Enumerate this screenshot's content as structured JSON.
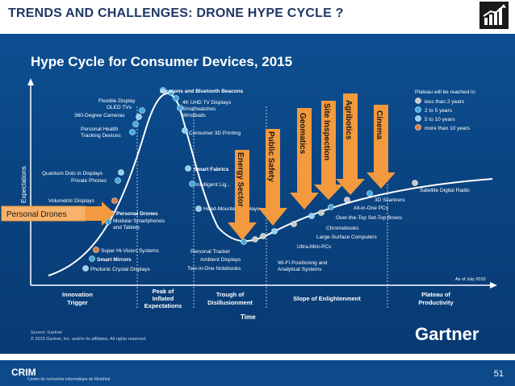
{
  "slide": {
    "title": "TRENDS AND CHALLENGES: DRONE HYPE CYCLE ?",
    "page_number": "51",
    "footer_logo": "CRIM",
    "footer_logo_sub": "Centre de recherche informatique de Montréal",
    "logo_icon": "rising-chart-icon"
  },
  "figure": {
    "title": "Hype Cycle for Consumer Devices, 2015",
    "y_axis_label": "Expectations",
    "x_axis_label": "Time",
    "as_of": "As of July 2015",
    "source_line1": "Source: Gartner",
    "source_line2": "© 2015 Gartner, Inc. and/or its affiliates. All rights reserved.",
    "brand": "Gartner",
    "phases": [
      "Innovation\nTrigger",
      "Peak of\nInflated\nExpectations",
      "Trough of\nDisillusionment",
      "Slope of Enlightenment",
      "Plateau of\nProductivity"
    ],
    "legend": {
      "title": "Plateau will be reached in:",
      "items": [
        {
          "label": "less than 2 years",
          "color": "#c9c9c9"
        },
        {
          "label": "2 to 5 years",
          "color": "#3fa9e0"
        },
        {
          "label": "5 to 10 years",
          "color": "#8fd0f0"
        },
        {
          "label": "more than 10 years",
          "color": "#e07b39"
        }
      ]
    },
    "technologies": [
      "Flexible Display",
      "OLED TVs",
      "360-Degree Cameras",
      "Personal Health\nTracking Devices",
      "iBeacons and Bluetooth Beacons",
      "4K UHD TV Displays",
      "Smartwatches",
      "Wristbads",
      "Consumer 3D Printing",
      "Smart Fabrics",
      "Intelligent Lig...",
      "Head-Mounted Displays",
      "Quantum Dots in Displays",
      "Private Phones",
      "Volumetric Displays",
      "Personal Drones",
      "Modular Smartphones\nand Tablets",
      "Super Hi-Vision Systems",
      "Smart Mirrors",
      "Photonic Crystal Displays",
      "Personal Tracker",
      "Ambient Displays",
      "Two-in-One Notebooks",
      "Wi-Fi Positioning and\nAnalytical Systems",
      "Ultra-Mini-PCs",
      "Large-Surface Computers",
      "Chromebooks",
      "Over-the-Top Set-Top Boxes",
      "All-in-One PCs",
      "3D Scanners",
      "Satellite Digital Radio"
    ]
  },
  "annotations": {
    "personal_drones_callout": "Personal Drones",
    "arrows": [
      "Energy Sector",
      "Public Safety",
      "Geomatics",
      "Site Inspection",
      "Agribotics",
      "Cinema"
    ],
    "arrow_color": "#f39a3e"
  }
}
